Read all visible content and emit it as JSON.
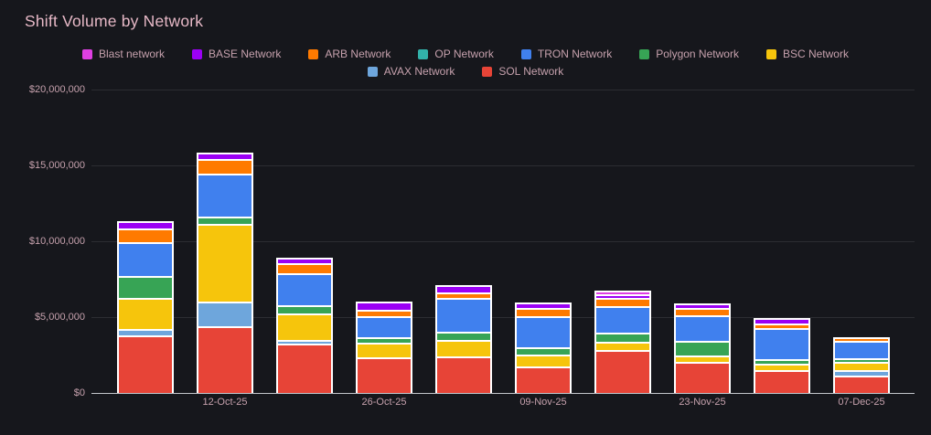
{
  "title": "Shift Volume by Network",
  "text_colors": {
    "title": "#e7b9c7",
    "axis": "#c6a1ad"
  },
  "background_color": "#16171c",
  "legend": {
    "items": [
      {
        "label": "Blast network",
        "color": "#df3fe3"
      },
      {
        "label": "BASE Network",
        "color": "#9b00f5"
      },
      {
        "label": "ARB Network",
        "color": "#ff7a00"
      },
      {
        "label": "OP Network",
        "color": "#32b2aa"
      },
      {
        "label": "TRON Network",
        "color": "#4080ee"
      },
      {
        "label": "Polygon Network",
        "color": "#37a455"
      },
      {
        "label": "BSC Network",
        "color": "#f6c50c"
      },
      {
        "label": "AVAX Network",
        "color": "#6ea6dc"
      },
      {
        "label": "SOL Network",
        "color": "#e74437"
      }
    ]
  },
  "chart_data": {
    "type": "bar",
    "stacked": true,
    "title": "Shift Volume by Network",
    "values_unit": "USD",
    "ylim": [
      0,
      20000000
    ],
    "grid": "horizontal",
    "legend_position": "top",
    "y_tick_labels": [
      "$0",
      "$5,000,000",
      "$10,000,000",
      "$15,000,000",
      "$20,000,000"
    ],
    "x_tick_labels": [
      "",
      "12-Oct-25",
      "",
      "26-Oct-25",
      "",
      "09-Nov-25",
      "",
      "23-Nov-25",
      "",
      "07-Dec-25"
    ],
    "stack_order_note": "series listed bottom-to-top of each stacked bar",
    "series": [
      {
        "name": "SOL Network",
        "color": "#e74437",
        "values": [
          3700000,
          4250000,
          3150000,
          2200000,
          2300000,
          1600000,
          2700000,
          1950000,
          1400000,
          1050000
        ]
      },
      {
        "name": "AVAX Network",
        "color": "#6ea6dc",
        "values": [
          280000,
          1500000,
          120000,
          0,
          0,
          0,
          0,
          0,
          0,
          230000
        ]
      },
      {
        "name": "BSC Network",
        "color": "#f6c50c",
        "values": [
          1900000,
          5000000,
          1600000,
          850000,
          950000,
          650000,
          400000,
          330000,
          290000,
          420000
        ]
      },
      {
        "name": "Polygon Network",
        "color": "#37a455",
        "values": [
          1350000,
          350000,
          450000,
          240000,
          400000,
          350000,
          500000,
          850000,
          200000,
          130000
        ]
      },
      {
        "name": "TRON Network",
        "color": "#4080ee",
        "values": [
          2100000,
          2700000,
          2000000,
          1250000,
          2100000,
          1900000,
          1600000,
          1550000,
          1950000,
          1050000
        ]
      },
      {
        "name": "OP Network",
        "color": "#32b2aa",
        "values": [
          0,
          0,
          0,
          0,
          0,
          0,
          0,
          0,
          0,
          0
        ]
      },
      {
        "name": "ARB Network",
        "color": "#ff7a00",
        "values": [
          780000,
          850000,
          550000,
          280000,
          250000,
          450000,
          450000,
          350000,
          160000,
          130000
        ]
      },
      {
        "name": "BASE Network",
        "color": "#9b00f5",
        "values": [
          380000,
          300000,
          260000,
          450000,
          350000,
          240000,
          140000,
          160000,
          250000,
          0
        ]
      },
      {
        "name": "Blast network",
        "color": "#df3fe3",
        "values": [
          0,
          0,
          0,
          0,
          0,
          0,
          100000,
          0,
          0,
          0
        ]
      }
    ]
  }
}
